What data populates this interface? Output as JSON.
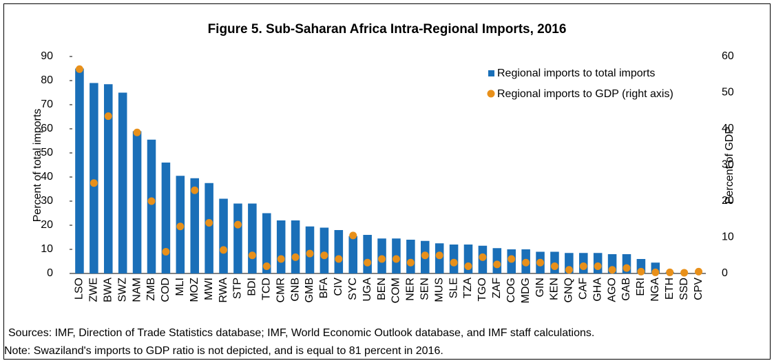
{
  "chart_data": {
    "type": "bar_dot",
    "title": "Figure 5. Sub-Saharan Africa Intra-Regional Imports, 2016",
    "y_label": "Percent of total imports",
    "y2_label": "Percent of GDP",
    "categories": [
      "LSO",
      "ZWE",
      "BWA",
      "SWZ",
      "NAM",
      "ZMB",
      "COD",
      "MLI",
      "MOZ",
      "MWI",
      "RWA",
      "STP",
      "BDI",
      "TCD",
      "CMR",
      "GNB",
      "GMB",
      "BFA",
      "CIV",
      "SYC",
      "UGA",
      "BEN",
      "COM",
      "NER",
      "SEN",
      "MUS",
      "SLE",
      "TZA",
      "TGO",
      "ZAF",
      "COG",
      "MDG",
      "GIN",
      "KEN",
      "GNQ",
      "CAF",
      "GHA",
      "AGO",
      "GAB",
      "ERI",
      "NGA",
      "ETH",
      "SSD",
      "CPV"
    ],
    "series": [
      {
        "name": "Regional imports to total imports",
        "color": "#1a6fb8",
        "values": [
          85,
          79,
          78.5,
          75,
          59,
          55.5,
          46,
          40.5,
          39.5,
          37.5,
          31,
          29,
          29,
          25,
          22,
          22,
          19.5,
          19,
          18,
          15.5,
          16,
          14.5,
          14.5,
          14,
          13.5,
          12.5,
          12,
          12,
          11.5,
          10.5,
          10,
          10,
          9,
          9,
          8.5,
          8.5,
          8.5,
          8,
          8,
          6,
          4.5,
          0.5,
          0,
          0
        ]
      },
      {
        "name": "Regional imports to GDP (right axis)",
        "color": "#e8901a",
        "axis": "y2",
        "values": [
          56.5,
          25,
          43.5,
          null,
          39,
          20,
          6,
          13,
          23,
          14,
          6.5,
          13.5,
          5,
          2,
          4,
          4.5,
          5.5,
          5,
          4,
          10.5,
          3,
          4,
          4,
          3,
          5,
          5,
          3,
          2,
          4.5,
          2.5,
          4,
          3,
          3,
          2,
          1,
          2,
          2,
          1,
          1.5,
          0.5,
          0.3,
          0.3,
          0.2,
          0.5
        ]
      }
    ],
    "ylim": [
      0,
      90
    ],
    "yticks": [
      0,
      10,
      20,
      30,
      40,
      50,
      60,
      70,
      80,
      90
    ],
    "y2lim": [
      0,
      60
    ],
    "y2ticks": [
      0,
      10,
      20,
      30,
      40,
      50,
      60
    ],
    "legend": "top-right",
    "notes": [
      "Sources: IMF, Direction of Trade Statistics database; IMF, World Economic Outlook database, and IMF staff calculations.",
      "Note: Swaziland's imports to GDP ratio is not depicted, and is equal to 81 percent in 2016."
    ]
  }
}
